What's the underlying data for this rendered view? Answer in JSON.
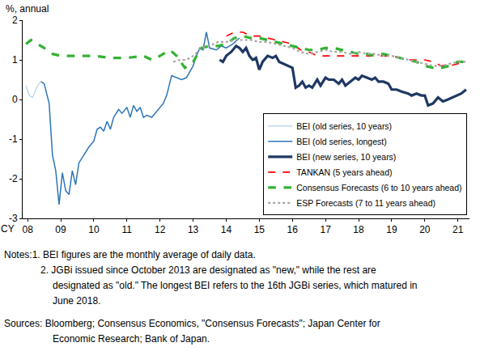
{
  "chart_data": {
    "type": "line",
    "ylabel": "%, annual",
    "xlabel": "CY",
    "xlim": [
      2007.85,
      2021.35
    ],
    "xticks": [
      {
        "value": 2008,
        "label": "08"
      },
      {
        "value": 2009,
        "label": "09"
      },
      {
        "value": 2010,
        "label": "10"
      },
      {
        "value": 2011,
        "label": "11"
      },
      {
        "value": 2012,
        "label": "12"
      },
      {
        "value": 2013,
        "label": "13"
      },
      {
        "value": 2014,
        "label": "14"
      },
      {
        "value": 2015,
        "label": "15"
      },
      {
        "value": 2016,
        "label": "16"
      },
      {
        "value": 2017,
        "label": "17"
      },
      {
        "value": 2018,
        "label": "18"
      },
      {
        "value": 2019,
        "label": "19"
      },
      {
        "value": 2020,
        "label": "20"
      },
      {
        "value": 2021,
        "label": "21"
      }
    ],
    "ylim": [
      -3,
      2
    ],
    "yticks": [
      -3,
      -2,
      -1,
      0,
      1,
      2
    ],
    "grid": false,
    "legend": "lower right",
    "series": [
      {
        "name": "BEI (old series, 10 years)",
        "color": "#9DC3E6",
        "line_style": "solid",
        "x": [
          2007.95,
          2008.05,
          2008.15,
          2008.3,
          2008.4
        ],
        "values": [
          0.35,
          0.1,
          0.05,
          0.35,
          0.45
        ]
      },
      {
        "name": "BEI (old series, longest)",
        "color": "#2E75B6",
        "line_style": "solid",
        "x": [
          2008.4,
          2008.5,
          2008.65,
          2008.75,
          2008.85,
          2008.95,
          2009.05,
          2009.15,
          2009.25,
          2009.35,
          2009.45,
          2009.55,
          2009.7,
          2009.85,
          2010.0,
          2010.1,
          2010.2,
          2010.3,
          2010.4,
          2010.5,
          2010.6,
          2010.75,
          2010.85,
          2011.0,
          2011.1,
          2011.2,
          2011.3,
          2011.4,
          2011.5,
          2011.6,
          2011.75,
          2011.9,
          2012.0,
          2012.1,
          2012.2,
          2012.35,
          2012.5,
          2012.65,
          2012.8,
          2012.9,
          2013.0,
          2013.1,
          2013.2,
          2013.3,
          2013.4,
          2013.5,
          2013.7,
          2013.85,
          2014.0,
          2014.2,
          2014.4
        ],
        "values": [
          0.45,
          0.4,
          -0.1,
          -1.4,
          -1.8,
          -2.65,
          -1.85,
          -2.3,
          -2.4,
          -1.8,
          -2.15,
          -1.6,
          -1.4,
          -1.2,
          -1.05,
          -0.75,
          -0.7,
          -0.8,
          -0.55,
          -0.75,
          -0.45,
          -0.25,
          -0.35,
          -0.2,
          -0.45,
          -0.15,
          -0.3,
          -0.2,
          -0.45,
          -0.4,
          -0.45,
          -0.3,
          -0.2,
          -0.1,
          0.1,
          0.6,
          0.55,
          0.5,
          0.55,
          0.7,
          0.85,
          1.1,
          1.3,
          1.25,
          1.7,
          1.3,
          1.25,
          1.35,
          1.3,
          1.4,
          1.55
        ]
      },
      {
        "name": "BEI (new series, 10 years)",
        "color": "#1F3864",
        "line_style": "solid",
        "x": [
          2013.8,
          2013.9,
          2014.0,
          2014.15,
          2014.3,
          2014.4,
          2014.5,
          2014.6,
          2014.7,
          2014.8,
          2014.9,
          2015.0,
          2015.1,
          2015.25,
          2015.4,
          2015.5,
          2015.6,
          2015.75,
          2015.9,
          2016.0,
          2016.1,
          2016.2,
          2016.3,
          2016.4,
          2016.5,
          2016.6,
          2016.75,
          2016.85,
          2017.0,
          2017.1,
          2017.25,
          2017.4,
          2017.5,
          2017.6,
          2017.75,
          2017.9,
          2018.0,
          2018.1,
          2018.25,
          2018.4,
          2018.5,
          2018.6,
          2018.75,
          2018.9,
          2019.0,
          2019.15,
          2019.3,
          2019.5,
          2019.6,
          2019.75,
          2019.9,
          2020.0,
          2020.1,
          2020.25,
          2020.4,
          2020.55,
          2020.7,
          2020.85,
          2021.0,
          2021.1,
          2021.25
        ],
        "values": [
          1.0,
          0.95,
          1.1,
          1.2,
          1.35,
          1.3,
          1.2,
          1.3,
          1.1,
          1.0,
          1.05,
          0.75,
          0.95,
          1.1,
          1.05,
          1.1,
          0.95,
          0.9,
          0.85,
          0.8,
          0.3,
          0.35,
          0.45,
          0.3,
          0.35,
          0.3,
          0.5,
          0.35,
          0.55,
          0.5,
          0.5,
          0.4,
          0.5,
          0.35,
          0.45,
          0.55,
          0.5,
          0.6,
          0.55,
          0.5,
          0.55,
          0.45,
          0.45,
          0.4,
          0.25,
          0.25,
          0.2,
          0.15,
          0.1,
          0.15,
          0.1,
          0.1,
          -0.15,
          -0.1,
          0.05,
          -0.05,
          0.0,
          0.05,
          0.1,
          0.15,
          0.25
        ]
      },
      {
        "name": "TANKAN (5 years ahead)",
        "color": "#FF0000",
        "line_style": "dash",
        "x": [
          2014.0,
          2014.25,
          2014.5,
          2014.75,
          2015.0,
          2015.25,
          2015.5,
          2015.75,
          2016.0,
          2016.25,
          2016.5,
          2016.75,
          2017.0,
          2017.25,
          2017.5,
          2017.75,
          2018.0,
          2018.25,
          2018.5,
          2018.75,
          2019.0,
          2019.25,
          2019.5,
          2019.75,
          2020.0,
          2020.25,
          2020.5,
          2020.75,
          2021.0,
          2021.25
        ],
        "values": [
          1.6,
          1.7,
          1.7,
          1.6,
          1.6,
          1.55,
          1.5,
          1.45,
          1.4,
          1.25,
          1.2,
          1.1,
          1.1,
          1.1,
          1.1,
          1.1,
          1.1,
          1.1,
          1.1,
          1.1,
          1.1,
          1.05,
          1.0,
          1.0,
          1.0,
          0.95,
          0.85,
          0.85,
          0.9,
          0.95
        ]
      },
      {
        "name": "Consensus Forecasts (6 to 10 years ahead)",
        "color": "#33B233",
        "line_style": "dash",
        "x": [
          2007.95,
          2008.1,
          2008.3,
          2008.5,
          2008.75,
          2009.0,
          2009.5,
          2010.0,
          2010.5,
          2011.0,
          2011.5,
          2011.75,
          2012.0,
          2012.3,
          2012.5,
          2012.75,
          2013.0,
          2013.25,
          2013.5,
          2013.75,
          2014.0,
          2014.25,
          2014.5,
          2014.75,
          2015.0,
          2015.25,
          2015.5,
          2015.75,
          2016.0,
          2016.25,
          2016.5,
          2016.75,
          2017.0,
          2017.25,
          2017.5,
          2017.75,
          2018.0,
          2018.25,
          2018.5,
          2018.75,
          2019.0,
          2019.25,
          2019.5,
          2019.75,
          2020.0,
          2020.25,
          2020.5,
          2020.75,
          2021.0,
          2021.25
        ],
        "values": [
          1.4,
          1.5,
          1.4,
          1.3,
          1.15,
          1.1,
          1.1,
          1.1,
          1.05,
          1.05,
          1.1,
          1.0,
          1.1,
          1.25,
          1.1,
          0.8,
          0.95,
          1.3,
          1.35,
          1.35,
          1.4,
          1.55,
          1.6,
          1.55,
          1.55,
          1.5,
          1.45,
          1.4,
          1.35,
          1.3,
          1.25,
          1.25,
          1.3,
          1.3,
          1.25,
          1.2,
          1.15,
          1.15,
          1.1,
          1.15,
          1.1,
          1.05,
          1.0,
          0.95,
          0.85,
          0.8,
          0.8,
          0.85,
          0.95,
          0.95
        ]
      },
      {
        "name": "ESP Forecasts (7 to 11 years ahead)",
        "color": "#A6A6A6",
        "line_style": "dot",
        "x": [
          2012.4,
          2012.6,
          2012.8,
          2013.0,
          2013.25,
          2013.5,
          2013.75,
          2014.0,
          2014.25,
          2014.5,
          2014.75,
          2015.0,
          2015.25,
          2015.5,
          2015.75,
          2016.0,
          2016.25,
          2016.5,
          2016.75,
          2017.0,
          2017.25,
          2017.5,
          2017.75,
          2018.0,
          2018.25,
          2018.5,
          2018.75,
          2019.0,
          2019.25,
          2019.5,
          2019.75,
          2020.0,
          2020.25,
          2020.5,
          2020.75,
          2021.0,
          2021.25
        ],
        "values": [
          0.95,
          1.0,
          1.0,
          1.1,
          1.3,
          1.35,
          1.45,
          1.45,
          1.5,
          1.5,
          1.5,
          1.45,
          1.45,
          1.4,
          1.35,
          1.3,
          1.2,
          1.15,
          1.2,
          1.25,
          1.2,
          1.2,
          1.15,
          1.2,
          1.15,
          1.15,
          1.1,
          1.1,
          1.05,
          1.0,
          0.95,
          0.9,
          0.85,
          0.85,
          0.9,
          0.95,
          0.95
        ]
      }
    ],
    "notes": [
      "Notes:1. BEI figures are the monthly average of daily data.",
      "2. JGBi issued since October 2013 are designated as \"new,\" while the rest are",
      "designated as \"old.\" The longest BEI refers to the 16th JGBi series, which matured in",
      "June 2018."
    ],
    "sources": [
      "Sources: Bloomberg; Consensus Economics, \"Consensus Forecasts\"; Japan Center for",
      "Economic Research; Bank of Japan."
    ]
  }
}
